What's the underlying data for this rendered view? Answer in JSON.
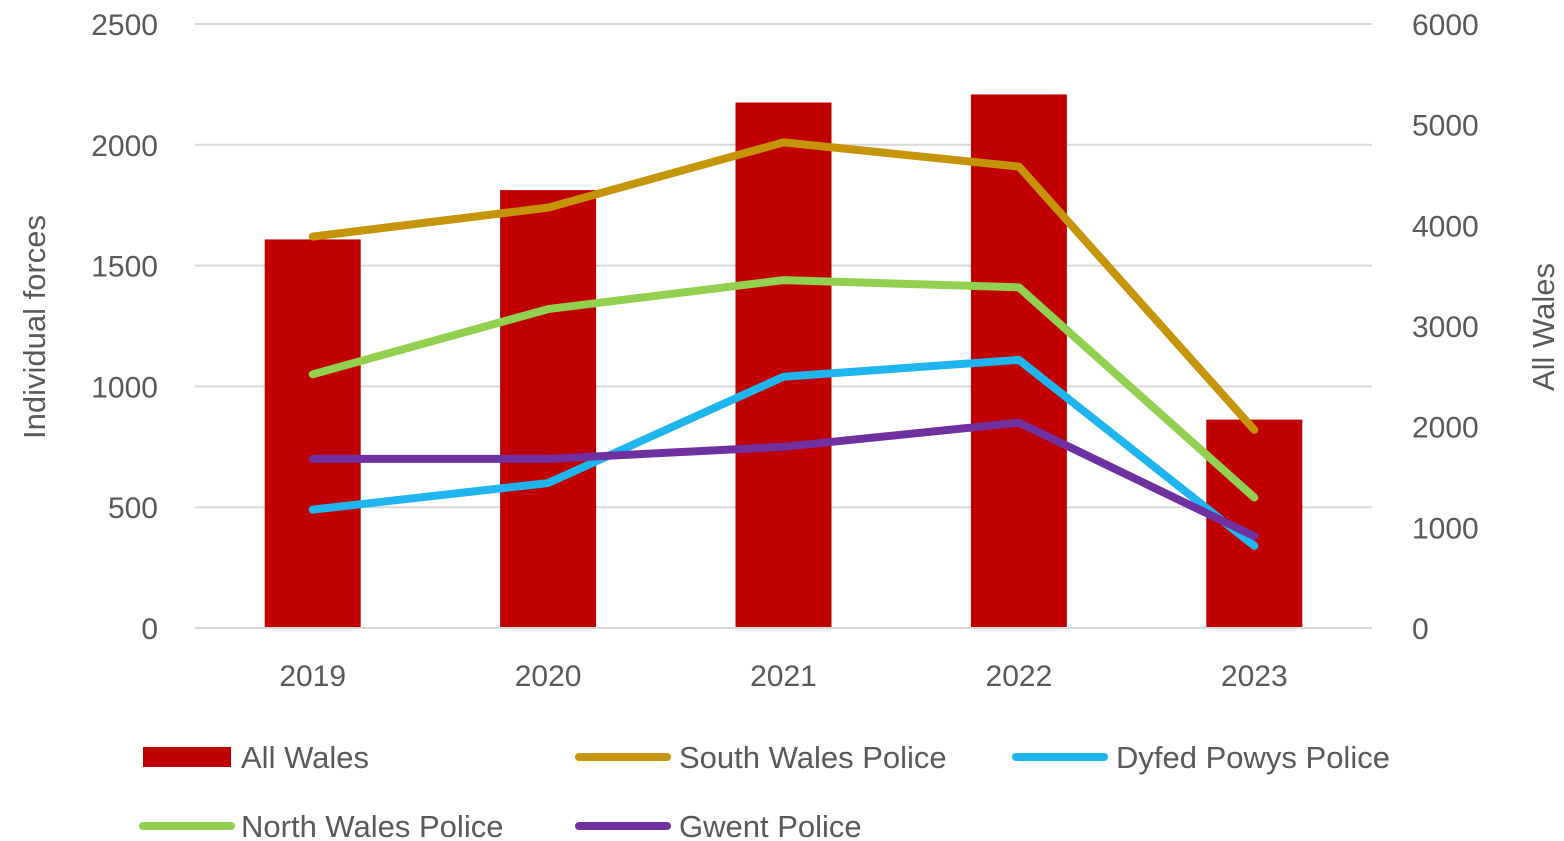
{
  "chart_data": {
    "type": "bar",
    "categories": [
      "2019",
      "2020",
      "2021",
      "2022",
      "2023"
    ],
    "ylabel": "Individual forces",
    "y2label": "All Wales",
    "ylim": [
      0,
      2500
    ],
    "y2lim": [
      0,
      6000
    ],
    "yticks": [
      "0",
      "500",
      "1000",
      "1500",
      "2000",
      "2500"
    ],
    "y2ticks": [
      "0",
      "1000",
      "2000",
      "3000",
      "4000",
      "5000",
      "6000"
    ],
    "grid": true,
    "legend_position": "bottom",
    "bar_series": {
      "name": "All Wales",
      "axis": "secondary",
      "color": "#C00000",
      "values": [
        3860,
        4350,
        5220,
        5300,
        2070
      ]
    },
    "line_series": [
      {
        "name": "South Wales Police",
        "axis": "primary",
        "color": "#C59408",
        "values": [
          1620,
          1740,
          2010,
          1910,
          820
        ]
      },
      {
        "name": "Dyfed Powys Police",
        "axis": "primary",
        "color": "#1FB5EE",
        "values": [
          490,
          600,
          1040,
          1110,
          340
        ]
      },
      {
        "name": "North Wales Police",
        "axis": "primary",
        "color": "#92D050",
        "values": [
          1050,
          1320,
          1440,
          1410,
          540
        ]
      },
      {
        "name": "Gwent Police",
        "axis": "primary",
        "color": "#7030A0",
        "values": [
          700,
          700,
          750,
          850,
          380
        ]
      }
    ]
  }
}
